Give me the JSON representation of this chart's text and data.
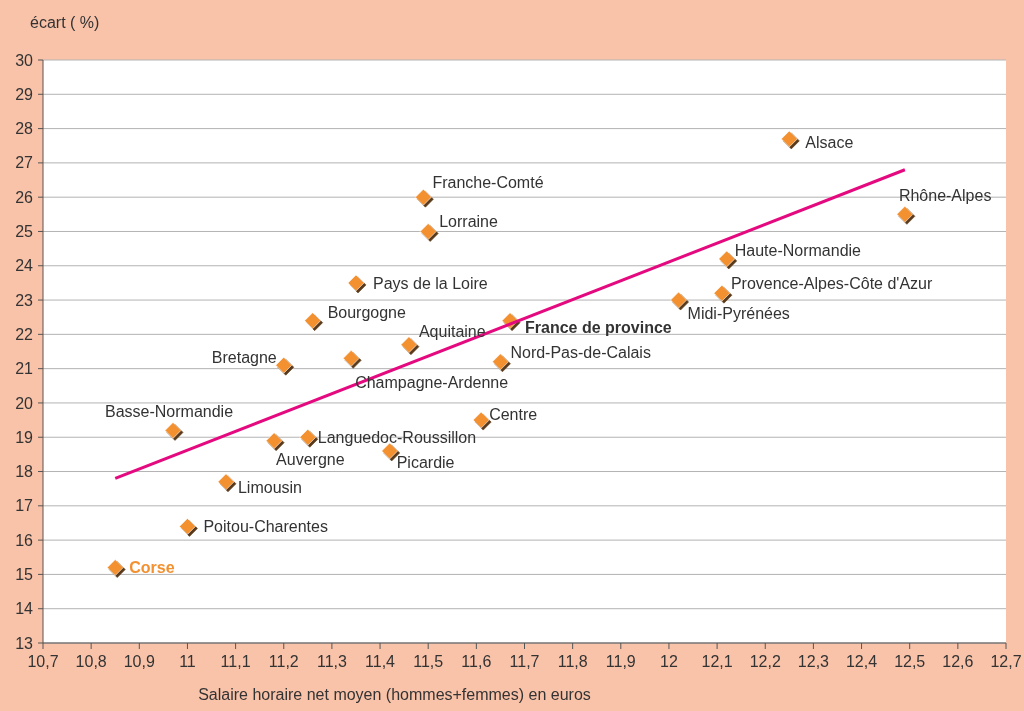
{
  "chart_data": {
    "type": "scatter",
    "xlabel": "Salaire horaire net moyen (hommes+femmes) en euros",
    "ylabel": "écart ( %)",
    "xlim": [
      10.7,
      12.7
    ],
    "ylim": [
      13,
      30
    ],
    "xticks": [
      {
        "value": 10.7,
        "label": "10,7"
      },
      {
        "value": 10.8,
        "label": "10,8"
      },
      {
        "value": 10.9,
        "label": "10,9"
      },
      11,
      {
        "value": 11.1,
        "label": "11,1"
      },
      {
        "value": 11.2,
        "label": "11,2"
      },
      {
        "value": 11.3,
        "label": "11,3"
      },
      {
        "value": 11.4,
        "label": "11,4"
      },
      {
        "value": 11.5,
        "label": "11,5"
      },
      {
        "value": 11.6,
        "label": "11,6"
      },
      {
        "value": 11.7,
        "label": "11,7"
      },
      {
        "value": 11.8,
        "label": "11,8"
      },
      {
        "value": 11.9,
        "label": "11,9"
      },
      12,
      {
        "value": 12.1,
        "label": "12,1"
      },
      {
        "value": 12.2,
        "label": "12,2"
      },
      {
        "value": 12.3,
        "label": "12,3"
      },
      {
        "value": 12.4,
        "label": "12,4"
      },
      {
        "value": 12.5,
        "label": "12,5"
      },
      {
        "value": 12.6,
        "label": "12,6"
      },
      {
        "value": 12.7,
        "label": "12,7"
      }
    ],
    "yticks": [
      13,
      14,
      15,
      16,
      17,
      18,
      19,
      20,
      21,
      22,
      23,
      24,
      25,
      26,
      27,
      28,
      29,
      30
    ],
    "grid": "y",
    "series": [
      {
        "marker": "diamond",
        "color": "#f39030",
        "x": [
          10.85,
          11.0,
          11.08,
          10.97,
          11.18,
          11.25,
          11.42,
          11.61,
          11.2,
          11.34,
          11.46,
          11.65,
          11.67,
          11.26,
          11.35,
          11.5,
          11.49,
          12.25,
          12.49,
          12.12,
          12.11,
          12.02
        ],
        "values": [
          15.2,
          16.4,
          17.7,
          19.2,
          18.9,
          19.0,
          18.6,
          19.5,
          21.1,
          21.3,
          21.7,
          21.2,
          22.4,
          22.4,
          23.5,
          25.0,
          26.0,
          27.7,
          25.5,
          24.2,
          23.2,
          23.0
        ]
      },
      {
        "type": "line",
        "color": "#e5097f",
        "x": [
          10.85,
          12.49
        ],
        "values": [
          17.8,
          26.8
        ]
      }
    ],
    "annotations": [
      {
        "text": "Corse",
        "x": 10.85,
        "y": 15.2
      },
      {
        "text": "Poitou-Charentes",
        "x": 11.0,
        "y": 16.4
      },
      {
        "text": "Limousin",
        "x": 11.08,
        "y": 17.7
      },
      {
        "text": "Basse-Normandie",
        "x": 10.97,
        "y": 19.2
      },
      {
        "text": "Auvergne",
        "x": 11.18,
        "y": 18.9
      },
      {
        "text": "Languedoc-Roussillon",
        "x": 11.25,
        "y": 19.0
      },
      {
        "text": "Picardie",
        "x": 11.42,
        "y": 18.6
      },
      {
        "text": "Centre",
        "x": 11.61,
        "y": 19.5
      },
      {
        "text": "Bretagne",
        "x": 11.2,
        "y": 21.1
      },
      {
        "text": "Champagne-Ardenne",
        "x": 11.34,
        "y": 21.3
      },
      {
        "text": "Aquitaine",
        "x": 11.46,
        "y": 21.7
      },
      {
        "text": "Nord-Pas-de-Calais",
        "x": 11.65,
        "y": 21.2
      },
      {
        "text": "France de province",
        "x": 11.67,
        "y": 22.4
      },
      {
        "text": "Bourgogne",
        "x": 11.26,
        "y": 22.4
      },
      {
        "text": "Pays de la Loire",
        "x": 11.35,
        "y": 23.5
      },
      {
        "text": "Lorraine",
        "x": 11.5,
        "y": 25.0
      },
      {
        "text": "Franche-Comté",
        "x": 11.49,
        "y": 26.0
      },
      {
        "text": "Alsace",
        "x": 12.25,
        "y": 27.7
      },
      {
        "text": "Rhône-Alpes",
        "x": 12.49,
        "y": 25.5
      },
      {
        "text": "Haute-Normandie",
        "x": 12.12,
        "y": 24.2
      },
      {
        "text": "Provence-Alpes-Côte d'Azur",
        "x": 12.11,
        "y": 23.2
      },
      {
        "text": "Midi-Pyrénées",
        "x": 12.02,
        "y": 23.0
      }
    ]
  }
}
